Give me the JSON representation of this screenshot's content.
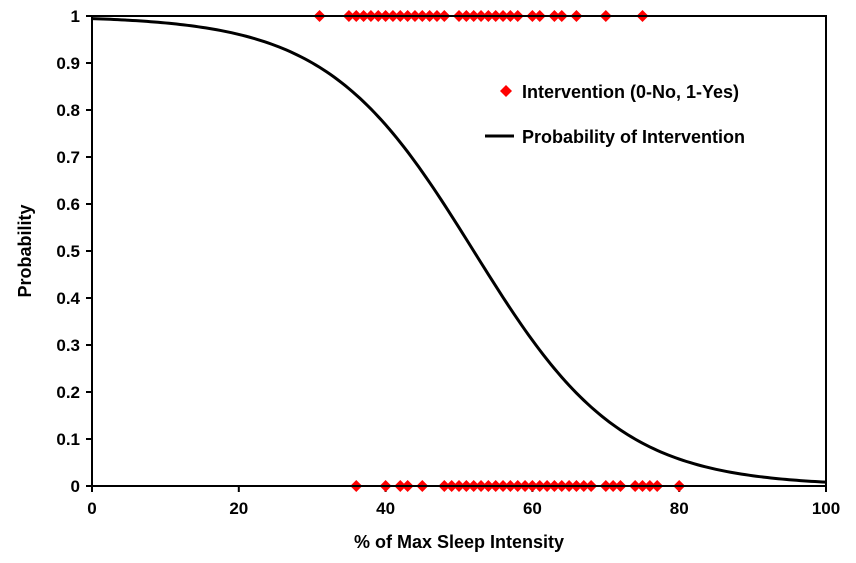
{
  "chart_data": {
    "type": "scatter",
    "xlabel": "% of Max Sleep Intensity",
    "ylabel": "Probability",
    "xlim": [
      0,
      100
    ],
    "ylim": [
      0,
      1
    ],
    "xticks": [
      "0",
      "20",
      "40",
      "60",
      "80",
      "100"
    ],
    "yticks": [
      "0",
      "0.1",
      "0.2",
      "0.3",
      "0.4",
      "0.5",
      "0.6",
      "0.7",
      "0.8",
      "0.9",
      "1"
    ],
    "grid": false,
    "legend_position": "top-right",
    "series": [
      {
        "name": "Intervention (0-No, 1-Yes)",
        "kind": "markers",
        "marker": "diamond",
        "color": "#ff0000",
        "points": [
          [
            31,
            1
          ],
          [
            35,
            1
          ],
          [
            36,
            1
          ],
          [
            37,
            1
          ],
          [
            38,
            1
          ],
          [
            39,
            1
          ],
          [
            40,
            1
          ],
          [
            41,
            1
          ],
          [
            42,
            1
          ],
          [
            43,
            1
          ],
          [
            44,
            1
          ],
          [
            45,
            1
          ],
          [
            46,
            1
          ],
          [
            47,
            1
          ],
          [
            48,
            1
          ],
          [
            50,
            1
          ],
          [
            51,
            1
          ],
          [
            52,
            1
          ],
          [
            53,
            1
          ],
          [
            54,
            1
          ],
          [
            55,
            1
          ],
          [
            56,
            1
          ],
          [
            57,
            1
          ],
          [
            58,
            1
          ],
          [
            60,
            1
          ],
          [
            61,
            1
          ],
          [
            63,
            1
          ],
          [
            64,
            1
          ],
          [
            66,
            1
          ],
          [
            70,
            1
          ],
          [
            75,
            1
          ],
          [
            36,
            0
          ],
          [
            40,
            0
          ],
          [
            42,
            0
          ],
          [
            43,
            0
          ],
          [
            45,
            0
          ],
          [
            48,
            0
          ],
          [
            49,
            0
          ],
          [
            50,
            0
          ],
          [
            51,
            0
          ],
          [
            52,
            0
          ],
          [
            53,
            0
          ],
          [
            54,
            0
          ],
          [
            55,
            0
          ],
          [
            56,
            0
          ],
          [
            57,
            0
          ],
          [
            58,
            0
          ],
          [
            59,
            0
          ],
          [
            60,
            0
          ],
          [
            61,
            0
          ],
          [
            62,
            0
          ],
          [
            63,
            0
          ],
          [
            64,
            0
          ],
          [
            65,
            0
          ],
          [
            66,
            0
          ],
          [
            67,
            0
          ],
          [
            68,
            0
          ],
          [
            70,
            0
          ],
          [
            71,
            0
          ],
          [
            72,
            0
          ],
          [
            74,
            0
          ],
          [
            75,
            0
          ],
          [
            76,
            0
          ],
          [
            77,
            0
          ],
          [
            80,
            0
          ]
        ]
      },
      {
        "name": "Probability of Intervention",
        "kind": "line",
        "color": "#000000",
        "logistic": {
          "midpoint": 52,
          "slope": 0.1
        },
        "x": [
          0,
          10,
          20,
          30,
          35,
          40,
          45,
          50,
          52,
          55,
          60,
          65,
          70,
          75,
          80,
          90,
          100
        ]
      }
    ]
  }
}
